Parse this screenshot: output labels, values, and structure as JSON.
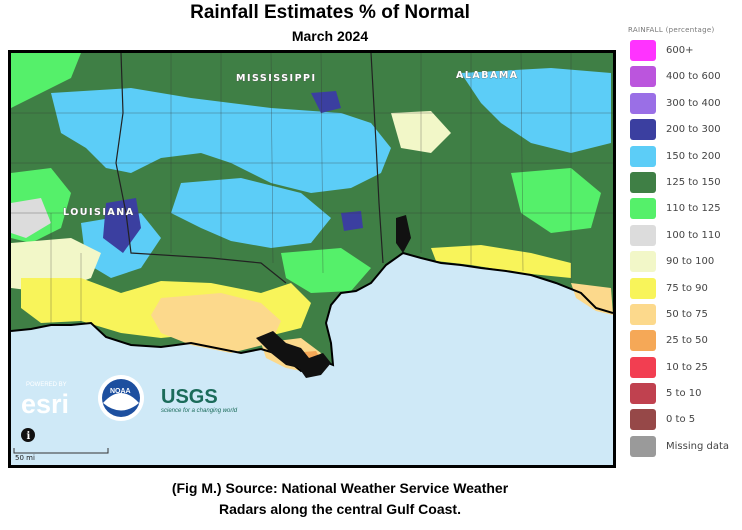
{
  "title": "Rainfall Estimates % of Normal",
  "subtitle": "March 2024",
  "caption": {
    "line1": "(Fig M.) Source: National Weather Service Weather",
    "line2": "Radars along the central Gulf Coast."
  },
  "map": {
    "state_labels": {
      "mississippi": "MISSISSIPPI",
      "alabama": "ALABAMA",
      "louisiana": "LOUISIANA"
    },
    "scale_label": "50 mi",
    "logos": {
      "esri_powered": "POWERED BY",
      "esri": "esri",
      "noaa": "NOAA",
      "usgs": "USGS",
      "usgs_tagline": "science for a changing world"
    },
    "info_icon": "i"
  },
  "legend": {
    "title": "RAINFALL (percentage)",
    "items": [
      {
        "label": "600+",
        "color": "#ff33ff"
      },
      {
        "label": "400 to 600",
        "color": "#bb55dd"
      },
      {
        "label": "300 to 400",
        "color": "#9a6fe6"
      },
      {
        "label": "200 to 300",
        "color": "#3b3fa0"
      },
      {
        "label": "150 to 200",
        "color": "#5ccdf7"
      },
      {
        "label": "125 to 150",
        "color": "#3f7f45"
      },
      {
        "label": "110 to 125",
        "color": "#55f06a"
      },
      {
        "label": "100 to 110",
        "color": "#dcdcdc"
      },
      {
        "label": "90 to 100",
        "color": "#f2f7c8"
      },
      {
        "label": "75 to 90",
        "color": "#f8f45a"
      },
      {
        "label": "50 to 75",
        "color": "#fcd98c"
      },
      {
        "label": "25 to 50",
        "color": "#f5a857"
      },
      {
        "label": "10 to 25",
        "color": "#f23e51"
      },
      {
        "label": "5 to 10",
        "color": "#c0414f"
      },
      {
        "label": "0 to 5",
        "color": "#964848"
      },
      {
        "label": "Missing data",
        "color": "#9a9a9a"
      }
    ]
  }
}
